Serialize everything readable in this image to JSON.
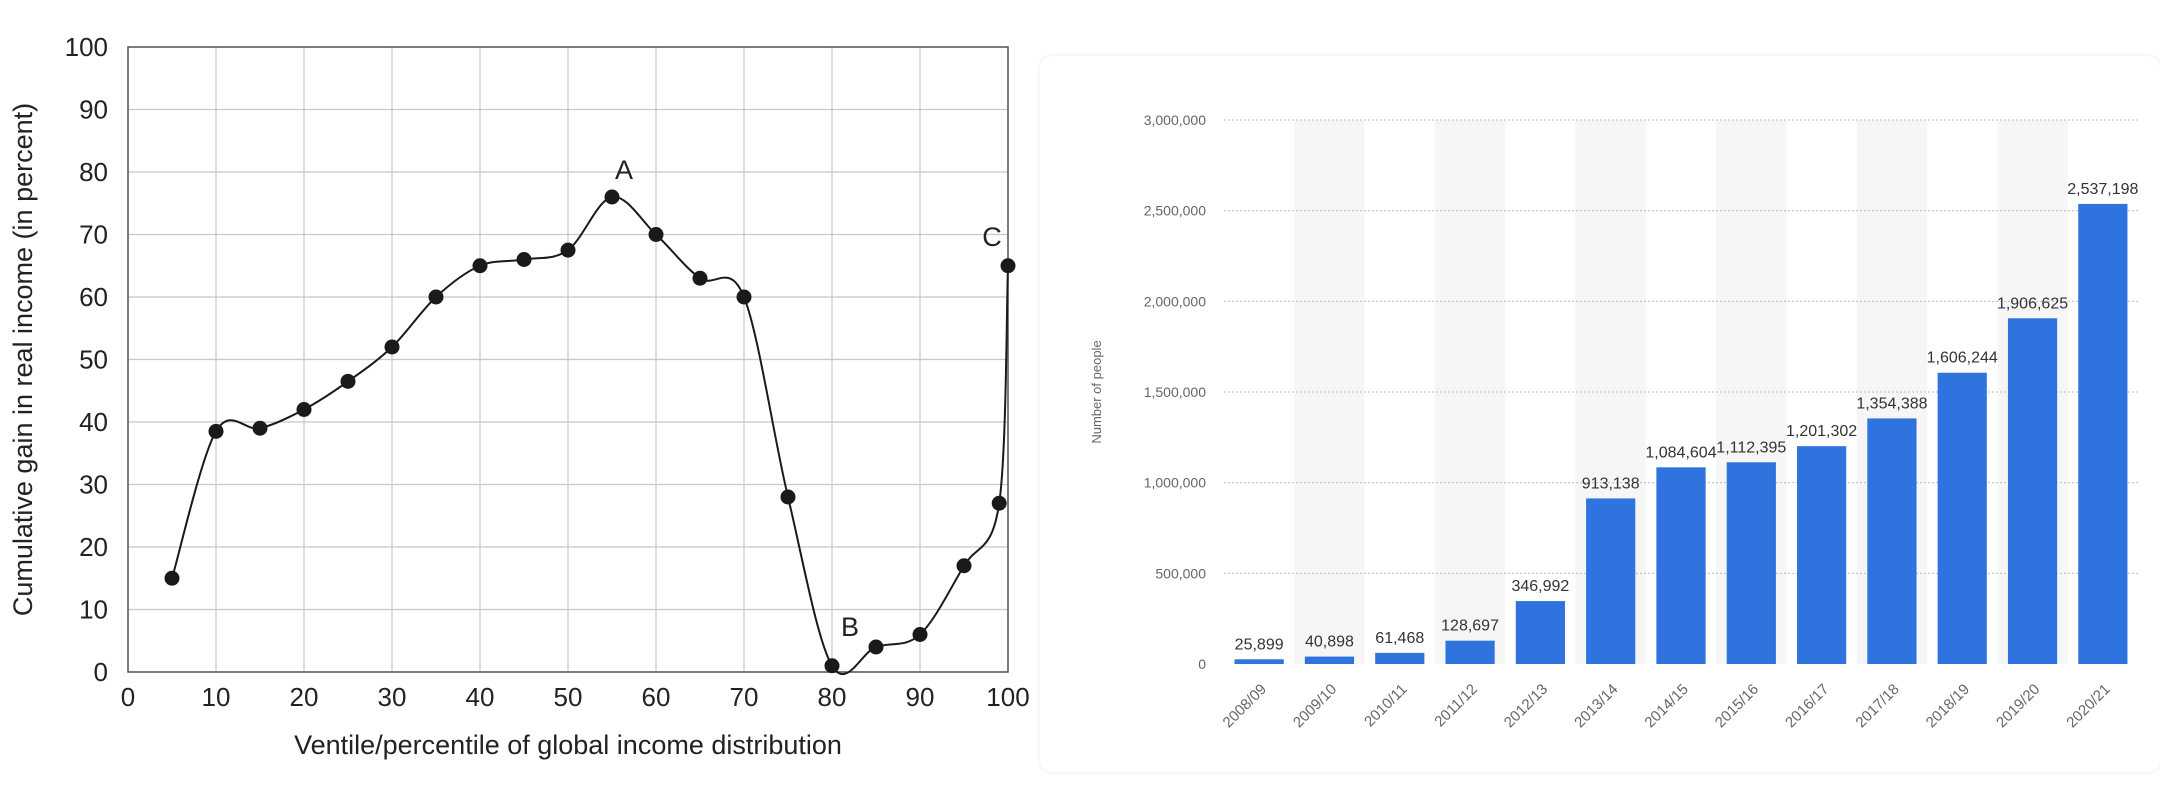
{
  "charts": [
    {
      "chart_data": {
        "type": "line",
        "xlabel": "Ventile/percentile of global income distribution",
        "ylabel": "Cumulative gain in real income (in percent)",
        "xlim": [
          0,
          100
        ],
        "ylim": [
          0,
          100
        ],
        "x_ticks": [
          0,
          10,
          20,
          30,
          40,
          50,
          60,
          70,
          80,
          90,
          100
        ],
        "y_ticks": [
          0,
          10,
          20,
          30,
          40,
          50,
          60,
          70,
          80,
          90,
          100
        ],
        "grid": true,
        "series": [
          {
            "x": [
              5,
              10,
              15,
              20,
              25,
              30,
              35,
              40,
              45,
              50,
              55,
              60,
              65,
              70,
              75,
              80,
              85,
              90,
              95,
              99,
              100
            ],
            "y": [
              15,
              38.5,
              39,
              42,
              46.5,
              52,
              60,
              65,
              66,
              67.5,
              76,
              70,
              63,
              60,
              28,
              1,
              4,
              6,
              17,
              27,
              65
            ]
          }
        ],
        "annotations": [
          {
            "text": "A",
            "x": 55,
            "y": 76
          },
          {
            "text": "B",
            "x": 80,
            "y": 1
          },
          {
            "text": "C",
            "x": 100,
            "y": 65
          }
        ],
        "colors": {
          "line": "#1a1a1a",
          "marker": "#1a1a1a",
          "grid": "#c8c8c8"
        }
      }
    },
    {
      "chart_data": {
        "type": "bar",
        "ylabel": "Number of people",
        "ylim": [
          0,
          3000000
        ],
        "y_ticks": [
          0,
          500000,
          1000000,
          1500000,
          2000000,
          2500000,
          3000000
        ],
        "y_tick_labels": [
          "0",
          "500,000",
          "1,000,000",
          "1,500,000",
          "2,000,000",
          "2,500,000",
          "3,000,000"
        ],
        "categories": [
          "2008/09",
          "2009/10",
          "2010/11",
          "2011/12",
          "2012/13",
          "2013/14",
          "2014/15",
          "2015/16",
          "2016/17",
          "2017/18",
          "2018/19",
          "2019/20",
          "2020/21"
        ],
        "values": [
          25899,
          40898,
          61468,
          128697,
          346992,
          913138,
          1084604,
          1112395,
          1201302,
          1354388,
          1606244,
          1906625,
          2537198
        ],
        "value_labels": [
          "25,899",
          "40,898",
          "61,468",
          "128,697",
          "346,992",
          "913,138",
          "1,084,604",
          "1,112,395",
          "1,201,302",
          "1,354,388",
          "1,606,244",
          "1,906,625",
          "2,537,198"
        ],
        "grid": true,
        "colors": {
          "bar": "#2f73de",
          "band": "#f6f6f6",
          "grid": "#bdbdbd",
          "text": "#333333",
          "axis_text": "#666666"
        }
      }
    }
  ]
}
